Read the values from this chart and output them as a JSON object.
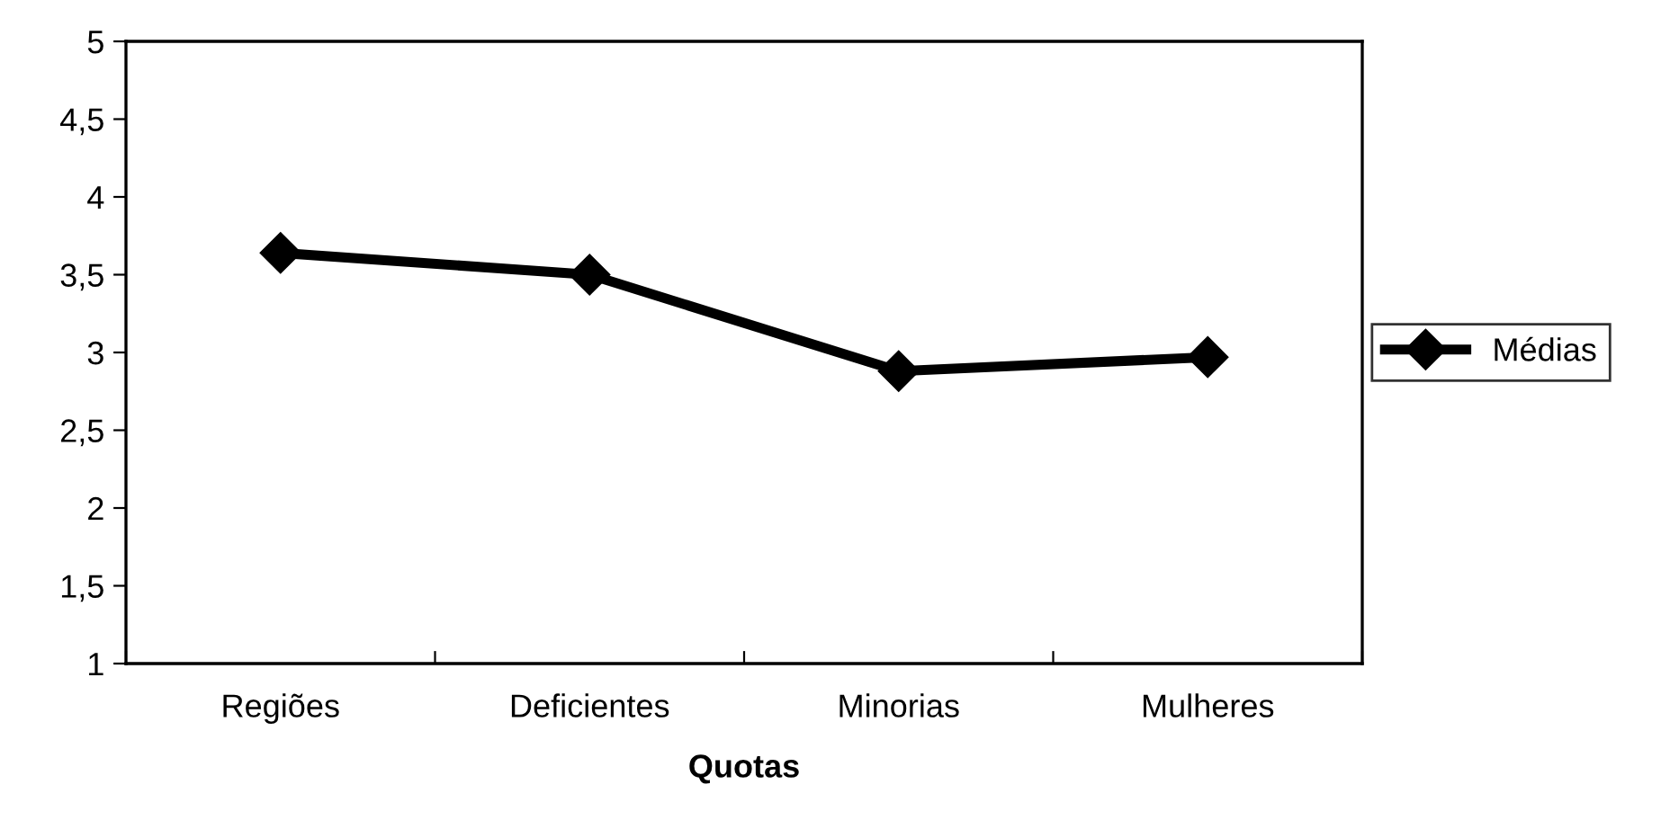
{
  "chart_data": {
    "type": "line",
    "xlabel": "Quotas",
    "categories": [
      "Regiões",
      "Deficientes",
      "Minorias",
      "Mulheres"
    ],
    "series": [
      {
        "name": "Médias",
        "color": "#000000",
        "values": [
          3.64,
          3.5,
          2.88,
          2.97
        ]
      }
    ],
    "ylim": [
      1,
      5
    ],
    "yticks": [
      1,
      {
        "value": 1.5,
        "label": "1,5"
      },
      2,
      {
        "value": 2.5,
        "label": "2,5"
      },
      3,
      {
        "value": 3.5,
        "label": "3,5"
      },
      4,
      {
        "value": 4.5,
        "label": "4,5"
      },
      5
    ],
    "marker": "diamond",
    "line_style": "solid",
    "legend": "right",
    "grid": false
  }
}
